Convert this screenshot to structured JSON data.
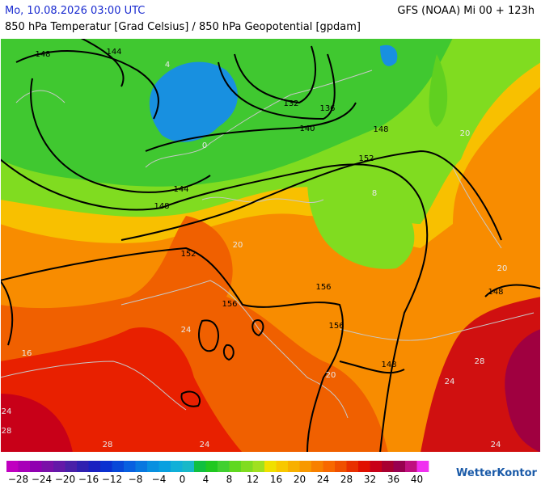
{
  "header": {
    "datetime": "Mo, 10.08.2026 03:00 UTC",
    "model": "GFS (NOAA) Mi 00 + 123h",
    "title": "850 hPa Temperatur [Grad Celsius] / 850 hPa Geopotential [gpdam]"
  },
  "map": {
    "geopotential_labels": [
      "148",
      "144",
      "132",
      "136",
      "140",
      "148",
      "152",
      "144",
      "148",
      "152",
      "156",
      "156",
      "156",
      "148",
      "148"
    ],
    "temperature_labels": [
      "4",
      "0",
      "8",
      "20",
      "20",
      "20",
      "24",
      "24",
      "28",
      "28",
      "24",
      "24",
      "28",
      "24",
      "16",
      "20"
    ]
  },
  "colorbar": {
    "labels": [
      "−28",
      "−24",
      "−20",
      "−16",
      "−12",
      "−8",
      "−4",
      "0",
      "4",
      "8",
      "12",
      "16",
      "20",
      "24",
      "28",
      "32",
      "36",
      "40"
    ],
    "colors": [
      "#c000c0",
      "#a800b8",
      "#9000b0",
      "#7a10a8",
      "#6418a8",
      "#4a20a8",
      "#3020b0",
      "#1a20c0",
      "#0a30d0",
      "#0848d8",
      "#0860e0",
      "#0878e0",
      "#0890e0",
      "#08a0e0",
      "#10b0d8",
      "#18b8c8",
      "#10c040",
      "#20c820",
      "#40d030",
      "#60d820",
      "#80dc20",
      "#a0e020",
      "#f0e000",
      "#f8c800",
      "#f8b000",
      "#f89800",
      "#f88000",
      "#f86800",
      "#f05000",
      "#e83000",
      "#e01000",
      "#c80018",
      "#a80030",
      "#980050",
      "#c01080",
      "#f030f0"
    ]
  },
  "logo": "WetterKontor"
}
